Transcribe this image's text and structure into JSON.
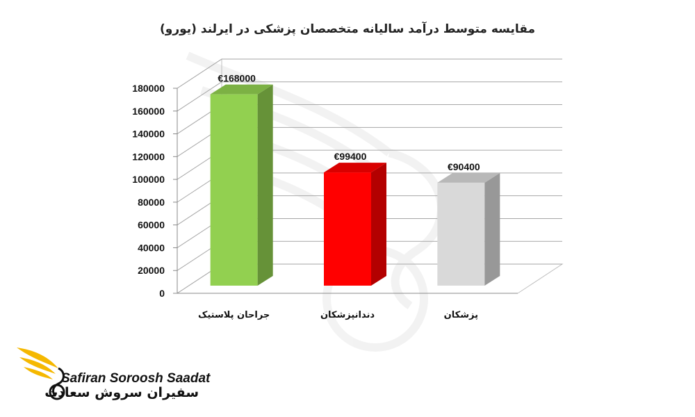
{
  "chart_data": {
    "type": "bar",
    "title": "مقایسه متوسط درآمد سالیانه متخصصان پزشکی در ایرلند (یورو)",
    "categories": [
      "جراحان پلاستیک",
      "دندانپزشکان",
      "پزشکان"
    ],
    "values": [
      168000,
      99400,
      90400
    ],
    "data_labels": [
      "€168000",
      "€99400",
      "€90400"
    ],
    "colors": [
      "#92d050",
      "#ff0000",
      "#d9d9d9"
    ],
    "ylim": [
      0,
      180000
    ],
    "yticks": [
      0,
      20000,
      40000,
      60000,
      80000,
      100000,
      120000,
      140000,
      160000,
      180000
    ],
    "grid": true,
    "legend": "none",
    "style": "3d-column"
  },
  "logo": {
    "text_en": "Safiran Soroosh Saadat",
    "text_fa": "سفیران سروش سعادت",
    "accent_color": "#f5b800"
  }
}
